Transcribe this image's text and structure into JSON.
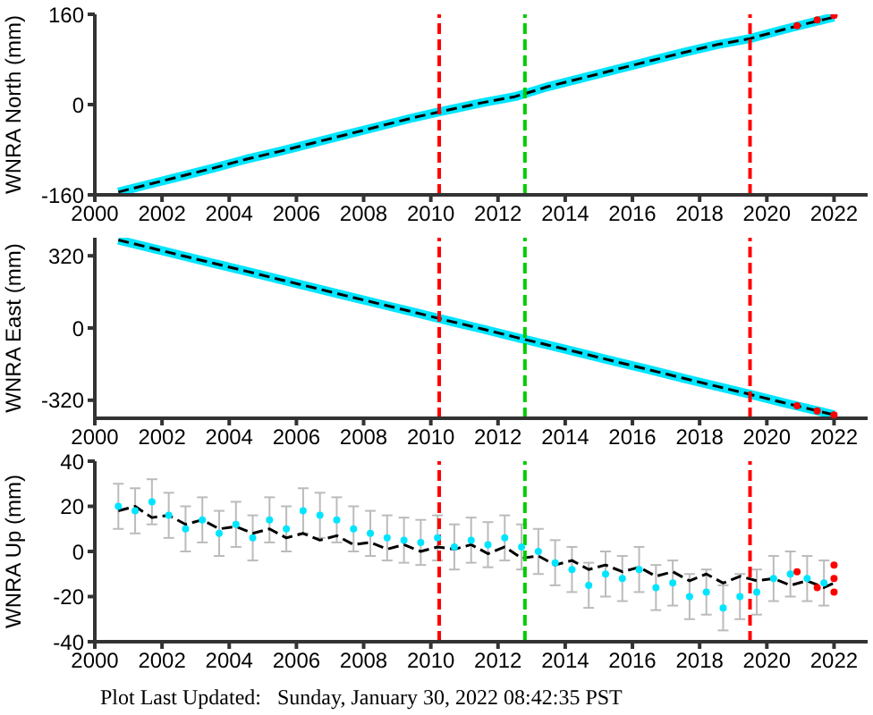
{
  "chart_data": [
    {
      "type": "line",
      "ylabel": "WNRA North (mm)",
      "xlim": [
        2000,
        2023
      ],
      "xticks": [
        2000,
        2002,
        2004,
        2006,
        2008,
        2010,
        2012,
        2014,
        2016,
        2018,
        2020,
        2022
      ],
      "ylim": [
        -160,
        160
      ],
      "yticks": [
        -160,
        0,
        160
      ],
      "series": [
        {
          "color": "#00e5ff",
          "x": [
            2000.7,
            2001.5,
            2002.5,
            2003.5,
            2004.5,
            2005.5,
            2006.5,
            2007.5,
            2008.5,
            2009.5,
            2010.25,
            2011.5,
            2012.5,
            2013.5,
            2014.5,
            2015.5,
            2016.5,
            2017.5,
            2018.5,
            2019.5,
            2020.5,
            2021.5,
            2022.0
          ],
          "values": [
            -155,
            -143,
            -128,
            -113,
            -97,
            -83,
            -68,
            -53,
            -38,
            -23,
            -13,
            3,
            14,
            32,
            47,
            62,
            77,
            92,
            106,
            117,
            133,
            148,
            155
          ]
        },
        {
          "color": "#000000",
          "line_style": "dashed",
          "x": [
            2000.7,
            2001.5,
            2002.5,
            2003.5,
            2004.5,
            2005.5,
            2006.5,
            2007.5,
            2008.5,
            2009.5,
            2010.25,
            2011.5,
            2012.5,
            2013.5,
            2014.5,
            2015.5,
            2016.5,
            2017.5,
            2018.5,
            2019.5,
            2020.5,
            2021.5,
            2022.0
          ],
          "values": [
            -155,
            -143,
            -128,
            -113,
            -97,
            -83,
            -68,
            -53,
            -38,
            -23,
            -13,
            3,
            14,
            32,
            47,
            62,
            77,
            92,
            106,
            117,
            133,
            148,
            155
          ]
        },
        {
          "type": "scatter",
          "color": "#ff0000",
          "marker": "circle",
          "x": [
            2020.9,
            2021.5,
            2022.0
          ],
          "values": [
            140,
            150,
            158
          ]
        }
      ],
      "ref_lines": [
        {
          "axis": "x",
          "value": 2010.25,
          "color": "#ff0000",
          "line_style": "dashed"
        },
        {
          "axis": "x",
          "value": 2012.8,
          "color": "#00cc00",
          "line_style": "dashed"
        },
        {
          "axis": "x",
          "value": 2019.5,
          "color": "#ff0000",
          "line_style": "dashed"
        }
      ]
    },
    {
      "type": "line",
      "ylabel": "WNRA East (mm)",
      "xlim": [
        2000,
        2023
      ],
      "xticks": [
        2000,
        2002,
        2004,
        2006,
        2008,
        2010,
        2012,
        2014,
        2016,
        2018,
        2020,
        2022
      ],
      "ylim": [
        -400,
        400
      ],
      "yticks": [
        -320,
        0,
        320
      ],
      "series": [
        {
          "color": "#00e5ff",
          "x": [
            2000.7,
            2001.5,
            2002.5,
            2003.5,
            2004.5,
            2005.5,
            2006.5,
            2007.5,
            2008.5,
            2009.5,
            2010.25,
            2011.5,
            2012.5,
            2013.5,
            2014.5,
            2015.5,
            2016.5,
            2017.5,
            2018.5,
            2019.5,
            2020.5,
            2021.5,
            2022.0
          ],
          "values": [
            390,
            361,
            324,
            288,
            252,
            215,
            179,
            142,
            106,
            70,
            42,
            -3,
            -40,
            -76,
            -112,
            -149,
            -185,
            -222,
            -258,
            -294,
            -331,
            -367,
            -385
          ]
        },
        {
          "color": "#000000",
          "line_style": "dashed",
          "x": [
            2000.7,
            2001.5,
            2002.5,
            2003.5,
            2004.5,
            2005.5,
            2006.5,
            2007.5,
            2008.5,
            2009.5,
            2010.25,
            2011.5,
            2012.5,
            2013.5,
            2014.5,
            2015.5,
            2016.5,
            2017.5,
            2018.5,
            2019.5,
            2020.5,
            2021.5,
            2022.0
          ],
          "values": [
            390,
            361,
            324,
            288,
            252,
            215,
            179,
            142,
            106,
            70,
            42,
            -3,
            -40,
            -76,
            -112,
            -149,
            -185,
            -222,
            -258,
            -294,
            -331,
            -367,
            -385
          ]
        },
        {
          "type": "scatter",
          "color": "#ff0000",
          "marker": "circle",
          "x": [
            2020.9,
            2021.5,
            2022.0
          ],
          "values": [
            -345,
            -367,
            -385
          ]
        }
      ],
      "ref_lines": [
        {
          "axis": "x",
          "value": 2010.25,
          "color": "#ff0000",
          "line_style": "dashed"
        },
        {
          "axis": "x",
          "value": 2012.8,
          "color": "#00cc00",
          "line_style": "dashed"
        },
        {
          "axis": "x",
          "value": 2019.5,
          "color": "#ff0000",
          "line_style": "dashed"
        }
      ]
    },
    {
      "type": "line",
      "ylabel": "WNRA Up (mm)",
      "xlim": [
        2000,
        2023
      ],
      "xticks": [
        2000,
        2002,
        2004,
        2006,
        2008,
        2010,
        2012,
        2014,
        2016,
        2018,
        2020,
        2022
      ],
      "ylim": [
        -40,
        40
      ],
      "yticks": [
        -40,
        -20,
        0,
        20,
        40
      ],
      "series": [
        {
          "type": "scatter",
          "color": "#00e5ff",
          "marker": "circle",
          "x": [
            2000.7,
            2001.2,
            2001.7,
            2002.2,
            2002.7,
            2003.2,
            2003.7,
            2004.2,
            2004.7,
            2005.2,
            2005.7,
            2006.2,
            2006.7,
            2007.2,
            2007.7,
            2008.2,
            2008.7,
            2009.2,
            2009.7,
            2010.2,
            2010.7,
            2011.2,
            2011.7,
            2012.2,
            2012.7,
            2013.2,
            2013.7,
            2014.2,
            2014.7,
            2015.2,
            2015.7,
            2016.2,
            2016.7,
            2017.2,
            2017.7,
            2018.2,
            2018.7,
            2019.2,
            2019.7,
            2020.2,
            2020.7,
            2021.2,
            2021.7
          ],
          "values": [
            20,
            18,
            22,
            16,
            10,
            14,
            8,
            12,
            6,
            14,
            10,
            18,
            16,
            14,
            10,
            8,
            6,
            5,
            4,
            6,
            2,
            5,
            3,
            6,
            2,
            0,
            -5,
            -8,
            -15,
            -10,
            -12,
            -8,
            -16,
            -14,
            -20,
            -18,
            -25,
            -20,
            -18,
            -12,
            -10,
            -12,
            -14
          ],
          "errors": [
            10,
            10,
            10,
            10,
            10,
            10,
            10,
            10,
            10,
            10,
            10,
            10,
            10,
            10,
            10,
            10,
            10,
            10,
            10,
            10,
            10,
            10,
            10,
            10,
            10,
            10,
            10,
            10,
            10,
            10,
            10,
            10,
            10,
            10,
            10,
            10,
            10,
            10,
            10,
            10,
            10,
            10,
            10
          ]
        },
        {
          "color": "#000000",
          "line_style": "dashed",
          "x": [
            2000.7,
            2001.2,
            2001.7,
            2002.2,
            2002.7,
            2003.2,
            2003.7,
            2004.2,
            2004.7,
            2005.2,
            2005.7,
            2006.2,
            2006.7,
            2007.2,
            2007.7,
            2008.2,
            2008.7,
            2009.2,
            2009.7,
            2010.2,
            2010.7,
            2011.2,
            2011.7,
            2012.2,
            2012.7,
            2013.2,
            2013.7,
            2014.2,
            2014.7,
            2015.2,
            2015.7,
            2016.2,
            2016.7,
            2017.2,
            2017.7,
            2018.2,
            2018.7,
            2019.2,
            2019.7,
            2020.2,
            2020.7,
            2021.2,
            2021.7,
            2022.0
          ],
          "values": [
            18,
            20,
            15,
            16,
            12,
            14,
            10,
            11,
            8,
            10,
            6,
            8,
            5,
            7,
            3,
            4,
            1,
            3,
            0,
            2,
            1,
            3,
            -1,
            2,
            -3,
            -2,
            -6,
            -4,
            -8,
            -6,
            -9,
            -7,
            -11,
            -9,
            -13,
            -10,
            -14,
            -11,
            -13,
            -12,
            -15,
            -13,
            -16,
            -14
          ]
        },
        {
          "type": "scatter",
          "color": "#ff0000",
          "marker": "circle",
          "x": [
            2020.9,
            2021.5,
            2022.0,
            2022.0,
            2022.0
          ],
          "values": [
            -9,
            -16,
            -12,
            -6,
            -18
          ]
        }
      ],
      "ref_lines": [
        {
          "axis": "x",
          "value": 2010.25,
          "color": "#ff0000",
          "line_style": "dashed"
        },
        {
          "axis": "x",
          "value": 2012.8,
          "color": "#00cc00",
          "line_style": "dashed"
        },
        {
          "axis": "x",
          "value": 2019.5,
          "color": "#ff0000",
          "line_style": "dashed"
        }
      ],
      "annotations": [
        "Plot Last Updated:   Sunday, January 30, 2022 08:42:35 PST"
      ]
    }
  ]
}
